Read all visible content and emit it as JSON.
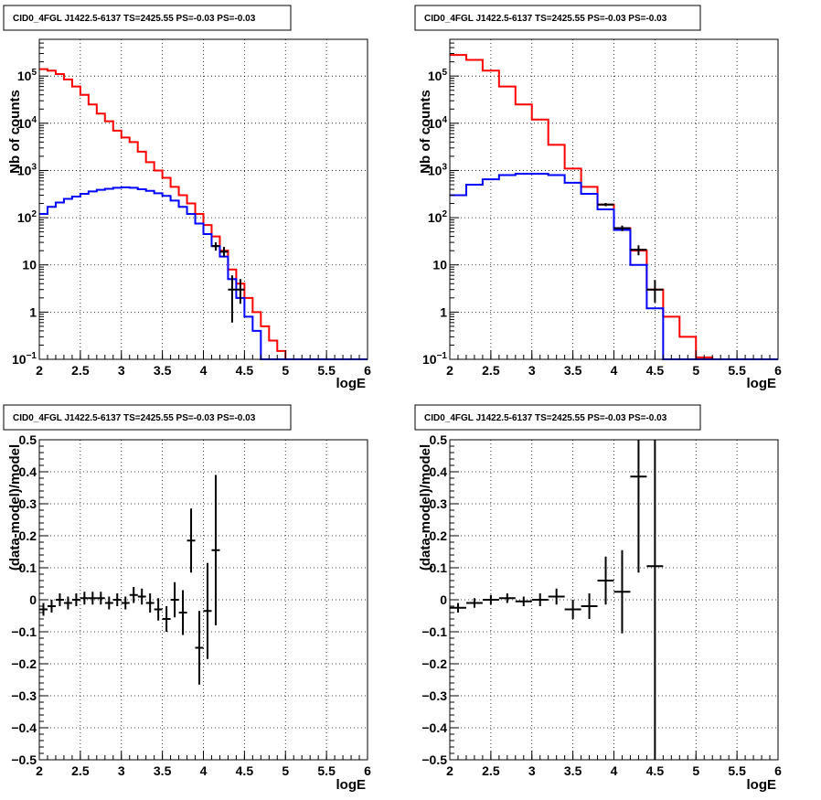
{
  "colors": {
    "model": "#ff0000",
    "secondary": "#0000ff",
    "data": "#000000",
    "background": "#ffffff"
  },
  "chart_data": [
    {
      "type": "line",
      "panel": "top-left",
      "title": "CID0_4FGL J1422.5-6137 TS=2425.55 PS=-0.03 PS=-0.03",
      "xlabel": "logE",
      "ylabel": "Nb of counts",
      "xlim": [
        2,
        6
      ],
      "ylim": [
        0.1,
        600000
      ],
      "yscale": "log",
      "grid": true,
      "x_ticks": [
        "2",
        "2.5",
        "3",
        "3.5",
        "4",
        "4.5",
        "5",
        "5.5",
        "6"
      ],
      "y_ticks": [
        {
          "v": 0.1,
          "label": "10",
          "sup": "−1"
        },
        {
          "v": 1,
          "label": "1",
          "sup": ""
        },
        {
          "v": 10,
          "label": "10",
          "sup": ""
        },
        {
          "v": 100,
          "label": "10",
          "sup": "2"
        },
        {
          "v": 1000,
          "label": "10",
          "sup": "3"
        },
        {
          "v": 10000,
          "label": "10",
          "sup": "4"
        },
        {
          "v": 100000,
          "label": "10",
          "sup": "5"
        }
      ],
      "bin_edges": [
        2.0,
        2.1,
        2.2,
        2.3,
        2.4,
        2.5,
        2.6,
        2.7,
        2.8,
        2.9,
        3.0,
        3.1,
        3.2,
        3.3,
        3.4,
        3.5,
        3.6,
        3.7,
        3.8,
        3.9,
        4.0,
        4.1,
        4.2,
        4.3,
        4.4,
        4.5,
        4.6,
        4.7,
        4.8,
        4.9,
        5.0,
        5.1,
        5.2,
        5.3,
        5.4,
        5.5,
        5.6,
        5.7,
        5.8,
        5.9,
        6.0
      ],
      "series": [
        {
          "role": "model",
          "color": "#ff0000",
          "values": [
            140000,
            130000,
            110000,
            85000,
            60000,
            40000,
            25000,
            16000,
            11000,
            7000,
            5000,
            4000,
            2500,
            1500,
            1000,
            700,
            450,
            300,
            200,
            120,
            70,
            40,
            20,
            8,
            4,
            2,
            1,
            0.5,
            0.25,
            0.15,
            0.1,
            0.1,
            0.1,
            0.1,
            0.1,
            0.1,
            0.1,
            0.1,
            0.1,
            0.1
          ]
        },
        {
          "role": "secondary",
          "color": "#0000ff",
          "values": [
            120,
            170,
            210,
            250,
            280,
            320,
            360,
            390,
            410,
            430,
            440,
            430,
            400,
            370,
            330,
            290,
            230,
            170,
            120,
            75,
            45,
            25,
            15,
            5,
            2,
            0.8,
            0.4,
            0.1,
            0.1,
            0.1,
            0.1,
            0.1,
            0.1,
            0.1,
            0.1,
            0.1,
            0.1,
            0.1,
            0.1,
            0.1
          ]
        }
      ],
      "points": [
        {
          "x": 4.15,
          "xerr": 0.05,
          "y": 25,
          "ylo": 20,
          "yhi": 30
        },
        {
          "x": 4.25,
          "xerr": 0.05,
          "y": 19,
          "ylo": 15,
          "yhi": 24
        },
        {
          "x": 4.35,
          "xerr": 0.05,
          "y": 3,
          "ylo": 0.6,
          "yhi": 6
        },
        {
          "x": 4.45,
          "xerr": 0.05,
          "y": 3,
          "ylo": 1.5,
          "yhi": 5
        }
      ]
    },
    {
      "type": "line",
      "panel": "top-right",
      "title": "CID0_4FGL J1422.5-6137 TS=2425.55 PS=-0.03 PS=-0.03",
      "xlabel": "logE",
      "ylabel": "Nb of counts",
      "xlim": [
        2,
        6
      ],
      "ylim": [
        0.1,
        600000
      ],
      "yscale": "log",
      "grid": true,
      "x_ticks": [
        "2",
        "2.5",
        "3",
        "3.5",
        "4",
        "4.5",
        "5",
        "5.5",
        "6"
      ],
      "y_ticks": [
        {
          "v": 0.1,
          "label": "10",
          "sup": "−1"
        },
        {
          "v": 1,
          "label": "1",
          "sup": ""
        },
        {
          "v": 10,
          "label": "10",
          "sup": ""
        },
        {
          "v": 100,
          "label": "10",
          "sup": "2"
        },
        {
          "v": 1000,
          "label": "10",
          "sup": "3"
        },
        {
          "v": 10000,
          "label": "10",
          "sup": "4"
        },
        {
          "v": 100000,
          "label": "10",
          "sup": "5"
        }
      ],
      "bin_edges": [
        2.0,
        2.2,
        2.4,
        2.6,
        2.8,
        3.0,
        3.2,
        3.4,
        3.6,
        3.8,
        4.0,
        4.2,
        4.4,
        4.6,
        4.8,
        5.0,
        5.2,
        5.4,
        5.6,
        5.8,
        6.0
      ],
      "series": [
        {
          "role": "model",
          "color": "#ff0000",
          "values": [
            280000,
            220000,
            130000,
            60000,
            25000,
            12000,
            3500,
            1100,
            450,
            190,
            60,
            20,
            3,
            0.8,
            0.3,
            0.11,
            0.1,
            0.1,
            0.1,
            0.1
          ]
        },
        {
          "role": "secondary",
          "color": "#0000ff",
          "values": [
            300,
            500,
            650,
            800,
            850,
            850,
            800,
            550,
            320,
            150,
            55,
            10,
            1.2,
            0.1,
            0.1,
            0.1,
            0.1,
            0.1,
            0.1,
            0.1
          ]
        }
      ],
      "points": [
        {
          "x": 3.9,
          "xerr": 0.1,
          "y": 190,
          "ylo": 175,
          "yhi": 205
        },
        {
          "x": 4.1,
          "xerr": 0.1,
          "y": 60,
          "ylo": 52,
          "yhi": 68
        },
        {
          "x": 4.3,
          "xerr": 0.1,
          "y": 21,
          "ylo": 16,
          "yhi": 26
        },
        {
          "x": 4.5,
          "xerr": 0.1,
          "y": 3,
          "ylo": 1.6,
          "yhi": 4.8
        }
      ]
    },
    {
      "type": "scatter",
      "panel": "bottom-left",
      "title": "CID0_4FGL J1422.5-6137 TS=2425.55 PS=-0.03 PS=-0.03",
      "xlabel": "logE",
      "ylabel": "(data-model)/model",
      "xlim": [
        2,
        6
      ],
      "ylim": [
        -0.5,
        0.5
      ],
      "yscale": "linear",
      "grid": true,
      "x_ticks": [
        "2",
        "2.5",
        "3",
        "3.5",
        "4",
        "4.5",
        "5",
        "5.5",
        "6"
      ],
      "y_ticks": [
        {
          "v": -0.5,
          "label": "−0.5"
        },
        {
          "v": -0.4,
          "label": "−0.4"
        },
        {
          "v": -0.3,
          "label": "−0.3"
        },
        {
          "v": -0.2,
          "label": "−0.2"
        },
        {
          "v": -0.1,
          "label": "−0.1"
        },
        {
          "v": 0,
          "label": "0"
        },
        {
          "v": 0.1,
          "label": "0.1"
        },
        {
          "v": 0.2,
          "label": "0.2"
        },
        {
          "v": 0.3,
          "label": "0.3"
        },
        {
          "v": 0.4,
          "label": "0.4"
        },
        {
          "v": 0.5,
          "label": "0.5"
        }
      ],
      "points": [
        {
          "x": 2.05,
          "xerr": 0.05,
          "y": -0.03,
          "err": 0.02
        },
        {
          "x": 2.15,
          "xerr": 0.05,
          "y": -0.02,
          "err": 0.02
        },
        {
          "x": 2.25,
          "xerr": 0.05,
          "y": 0.0,
          "err": 0.02
        },
        {
          "x": 2.35,
          "xerr": 0.05,
          "y": -0.01,
          "err": 0.02
        },
        {
          "x": 2.45,
          "xerr": 0.05,
          "y": 0.0,
          "err": 0.02
        },
        {
          "x": 2.55,
          "xerr": 0.05,
          "y": 0.005,
          "err": 0.02
        },
        {
          "x": 2.65,
          "xerr": 0.05,
          "y": 0.005,
          "err": 0.02
        },
        {
          "x": 2.75,
          "xerr": 0.05,
          "y": 0.005,
          "err": 0.02
        },
        {
          "x": 2.85,
          "xerr": 0.05,
          "y": -0.01,
          "err": 0.02
        },
        {
          "x": 2.95,
          "xerr": 0.05,
          "y": 0.0,
          "err": 0.02
        },
        {
          "x": 3.05,
          "xerr": 0.05,
          "y": -0.01,
          "err": 0.02
        },
        {
          "x": 3.15,
          "xerr": 0.05,
          "y": 0.015,
          "err": 0.025
        },
        {
          "x": 3.25,
          "xerr": 0.05,
          "y": 0.01,
          "err": 0.025
        },
        {
          "x": 3.35,
          "xerr": 0.05,
          "y": -0.01,
          "err": 0.03
        },
        {
          "x": 3.45,
          "xerr": 0.05,
          "y": -0.03,
          "err": 0.035
        },
        {
          "x": 3.55,
          "xerr": 0.05,
          "y": -0.06,
          "err": 0.04
        },
        {
          "x": 3.65,
          "xerr": 0.05,
          "y": 0.0,
          "err": 0.055
        },
        {
          "x": 3.75,
          "xerr": 0.05,
          "y": -0.04,
          "err": 0.07
        },
        {
          "x": 3.85,
          "xerr": 0.05,
          "y": 0.185,
          "err": 0.1
        },
        {
          "x": 3.95,
          "xerr": 0.05,
          "y": -0.15,
          "err": 0.115
        },
        {
          "x": 4.05,
          "xerr": 0.05,
          "y": -0.035,
          "err": 0.15
        },
        {
          "x": 4.15,
          "xerr": 0.05,
          "y": 0.155,
          "err": 0.235
        }
      ]
    },
    {
      "type": "scatter",
      "panel": "bottom-right",
      "title": "CID0_4FGL J1422.5-6137 TS=2425.55 PS=-0.03 PS=-0.03",
      "xlabel": "logE",
      "ylabel": "(data-model)/model",
      "xlim": [
        2,
        6
      ],
      "ylim": [
        -0.5,
        0.5
      ],
      "yscale": "linear",
      "grid": true,
      "x_ticks": [
        "2",
        "2.5",
        "3",
        "3.5",
        "4",
        "4.5",
        "5",
        "5.5",
        "6"
      ],
      "y_ticks": [
        {
          "v": -0.5,
          "label": "−0.5"
        },
        {
          "v": -0.4,
          "label": "−0.4"
        },
        {
          "v": -0.3,
          "label": "−0.3"
        },
        {
          "v": -0.2,
          "label": "−0.2"
        },
        {
          "v": -0.1,
          "label": "−0.1"
        },
        {
          "v": 0,
          "label": "0"
        },
        {
          "v": 0.1,
          "label": "0.1"
        },
        {
          "v": 0.2,
          "label": "0.2"
        },
        {
          "v": 0.3,
          "label": "0.3"
        },
        {
          "v": 0.4,
          "label": "0.4"
        },
        {
          "v": 0.5,
          "label": "0.5"
        }
      ],
      "points": [
        {
          "x": 2.1,
          "xerr": 0.1,
          "y": -0.025,
          "err": 0.015
        },
        {
          "x": 2.3,
          "xerr": 0.1,
          "y": -0.01,
          "err": 0.015
        },
        {
          "x": 2.5,
          "xerr": 0.1,
          "y": 0.0,
          "err": 0.015
        },
        {
          "x": 2.7,
          "xerr": 0.1,
          "y": 0.005,
          "err": 0.015
        },
        {
          "x": 2.9,
          "xerr": 0.1,
          "y": -0.005,
          "err": 0.015
        },
        {
          "x": 3.1,
          "xerr": 0.1,
          "y": 0.0,
          "err": 0.02
        },
        {
          "x": 3.3,
          "xerr": 0.1,
          "y": 0.01,
          "err": 0.025
        },
        {
          "x": 3.5,
          "xerr": 0.1,
          "y": -0.03,
          "err": 0.03
        },
        {
          "x": 3.7,
          "xerr": 0.1,
          "y": -0.02,
          "err": 0.04
        },
        {
          "x": 3.9,
          "xerr": 0.1,
          "y": 0.06,
          "err": 0.075
        },
        {
          "x": 4.1,
          "xerr": 0.1,
          "y": 0.025,
          "err": 0.13
        },
        {
          "x": 4.3,
          "xerr": 0.1,
          "y": 0.385,
          "err": 0.3
        },
        {
          "x": 4.5,
          "xerr": 0.1,
          "y": 0.105,
          "err": 0.7
        }
      ]
    }
  ]
}
